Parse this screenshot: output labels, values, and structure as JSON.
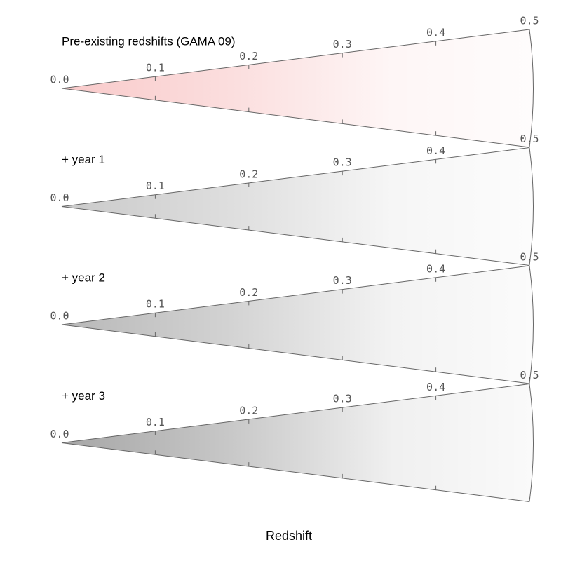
{
  "chart_data": [
    {
      "type": "cone",
      "title": "Pre-existing redshifts (GAMA 09)",
      "color": "#e00000",
      "xlim": [
        0,
        0.5
      ],
      "xticks": [
        {
          "value": 0,
          "label": "0.0"
        },
        0.1,
        0.2,
        0.3,
        0.4,
        0.5
      ]
    },
    {
      "type": "cone",
      "title": "+ year 1",
      "color": "#000000",
      "xlim": [
        0,
        0.5
      ],
      "xticks": [
        {
          "value": 0,
          "label": "0.0"
        },
        0.1,
        0.2,
        0.3,
        0.4,
        0.5
      ]
    },
    {
      "type": "cone",
      "title": "+ year 2",
      "color": "#000000",
      "xlim": [
        0,
        0.5
      ],
      "xticks": [
        {
          "value": 0,
          "label": "0.0"
        },
        0.1,
        0.2,
        0.3,
        0.4,
        0.5
      ]
    },
    {
      "type": "cone",
      "title": "+ year 3",
      "color": "#000000",
      "xlim": [
        0,
        0.5
      ],
      "xticks": [
        {
          "value": 0,
          "label": "0.0"
        },
        0.1,
        0.2,
        0.3,
        0.4,
        0.5
      ]
    }
  ],
  "xlabel": "Redshift"
}
